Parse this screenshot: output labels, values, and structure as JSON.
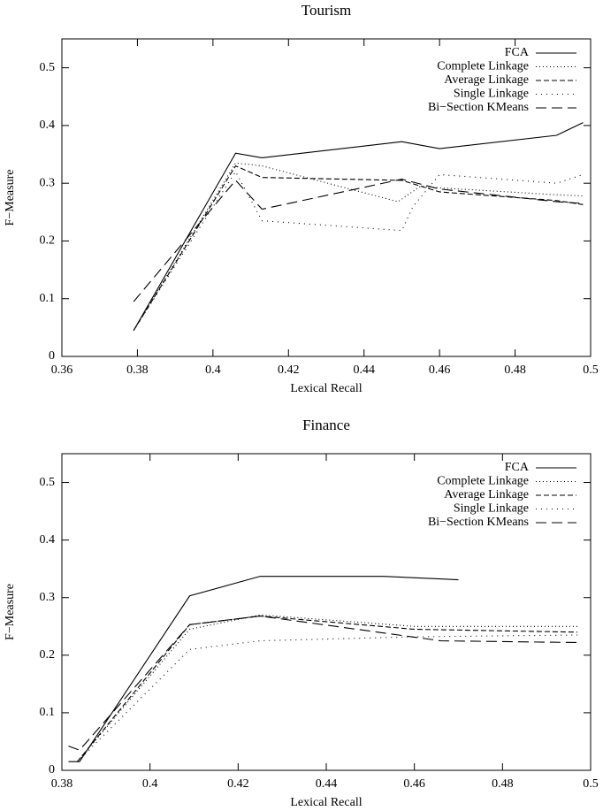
{
  "chart_data": [
    {
      "type": "line",
      "title": "Tourism",
      "xlabel": "Lexical Recall",
      "ylabel": "F−Measure",
      "xlim": [
        0.36,
        0.5
      ],
      "xticks": [
        0.36,
        0.38,
        0.4,
        0.42,
        0.44,
        0.46,
        0.48,
        0.5
      ],
      "ylim": [
        0,
        0.55
      ],
      "yticks": [
        0,
        0.1,
        0.2,
        0.3,
        0.4,
        0.5
      ],
      "legend": "top-right",
      "series": [
        {
          "name": "FCA",
          "color": "#000000",
          "dash": "none",
          "x": [
            0.379,
            0.406,
            0.413,
            0.45,
            0.46,
            0.491,
            0.498
          ],
          "values": [
            0.045,
            0.352,
            0.344,
            0.372,
            0.36,
            0.383,
            0.405
          ]
        },
        {
          "name": "Complete Linkage",
          "color": "#000000",
          "dash": "1,3",
          "x": [
            0.379,
            0.406,
            0.413,
            0.449,
            0.455,
            0.46,
            0.491,
            0.498
          ],
          "values": [
            0.045,
            0.335,
            0.33,
            0.268,
            0.295,
            0.292,
            0.28,
            0.278
          ]
        },
        {
          "name": "Average Linkage",
          "color": "#000000",
          "dash": "6,3",
          "x": [
            0.379,
            0.406,
            0.413,
            0.45,
            0.46,
            0.491,
            0.498
          ],
          "values": [
            0.045,
            0.33,
            0.31,
            0.305,
            0.285,
            0.27,
            0.263
          ]
        },
        {
          "name": "Single Linkage",
          "color": "#000000",
          "dash": "1,5",
          "x": [
            0.379,
            0.406,
            0.413,
            0.45,
            0.453,
            0.46,
            0.491,
            0.498
          ],
          "values": [
            0.045,
            0.32,
            0.235,
            0.218,
            0.26,
            0.315,
            0.3,
            0.315
          ]
        },
        {
          "name": "Bi−Section KMeans",
          "color": "#000000",
          "dash": "12,6",
          "x": [
            0.379,
            0.406,
            0.413,
            0.45,
            0.46,
            0.491,
            0.498
          ],
          "values": [
            0.095,
            0.305,
            0.255,
            0.307,
            0.29,
            0.268,
            0.265
          ]
        }
      ]
    },
    {
      "type": "line",
      "title": "Finance",
      "xlabel": "Lexical Recall",
      "ylabel": "F−Measure",
      "xlim": [
        0.38,
        0.5
      ],
      "xticks": [
        0.38,
        0.4,
        0.42,
        0.44,
        0.46,
        0.48,
        0.5
      ],
      "ylim": [
        0,
        0.55
      ],
      "yticks": [
        0,
        0.1,
        0.2,
        0.3,
        0.4,
        0.5
      ],
      "legend": "top-right",
      "series": [
        {
          "name": "FCA",
          "color": "#000000",
          "dash": "none",
          "x": [
            0.3815,
            0.384,
            0.409,
            0.425,
            0.453,
            0.47
          ],
          "values": [
            0.015,
            0.015,
            0.303,
            0.337,
            0.337,
            0.331
          ]
        },
        {
          "name": "Complete Linkage",
          "color": "#000000",
          "dash": "1,3",
          "x": [
            0.3835,
            0.409,
            0.425,
            0.46,
            0.497
          ],
          "values": [
            0.015,
            0.245,
            0.27,
            0.25,
            0.25
          ]
        },
        {
          "name": "Average Linkage",
          "color": "#000000",
          "dash": "6,3",
          "x": [
            0.3835,
            0.409,
            0.425,
            0.46,
            0.497
          ],
          "values": [
            0.015,
            0.253,
            0.268,
            0.245,
            0.24
          ]
        },
        {
          "name": "Single Linkage",
          "color": "#000000",
          "dash": "1,5",
          "x": [
            0.3835,
            0.409,
            0.425,
            0.46,
            0.497
          ],
          "values": [
            0.015,
            0.21,
            0.225,
            0.232,
            0.235
          ]
        },
        {
          "name": "Bi−Section KMeans",
          "color": "#000000",
          "dash": "12,6",
          "x": [
            0.3815,
            0.384,
            0.409,
            0.425,
            0.466,
            0.497
          ],
          "values": [
            0.042,
            0.035,
            0.253,
            0.268,
            0.225,
            0.222
          ]
        }
      ]
    }
  ]
}
